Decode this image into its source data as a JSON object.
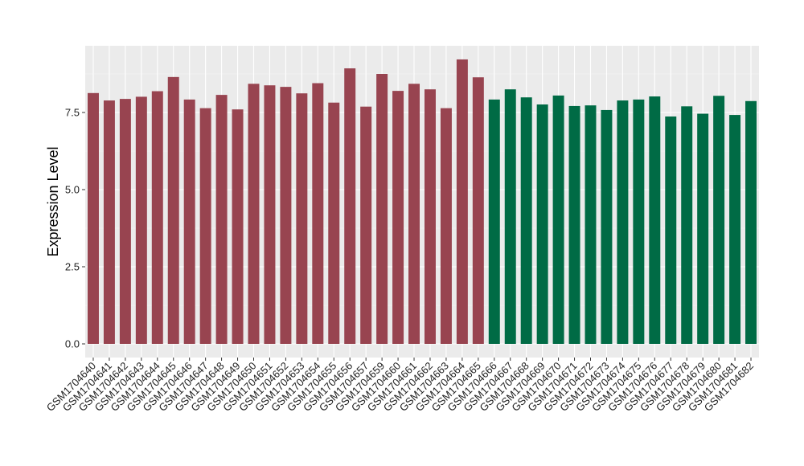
{
  "chart_data": {
    "type": "bar",
    "ylabel": "Expression Level",
    "xlabel": "",
    "ylim": [
      0,
      9.8
    ],
    "y_ticks": [
      0.0,
      2.5,
      5.0,
      7.5
    ],
    "y_tick_labels": [
      "0.0",
      "2.5",
      "5.0",
      "7.5"
    ],
    "grid": true,
    "background": "#EBEBEB",
    "categories": [
      "GSM1704640",
      "GSM1704641",
      "GSM1704642",
      "GSM1704643",
      "GSM1704644",
      "GSM1704645",
      "GSM1704646",
      "GSM1704647",
      "GSM1704648",
      "GSM1704649",
      "GSM1704650",
      "GSM1704651",
      "GSM1704652",
      "GSM1704653",
      "GSM1704654",
      "GSM1704655",
      "GSM1704656",
      "GSM1704657",
      "GSM1704659",
      "GSM1704660",
      "GSM1704661",
      "GSM1704662",
      "GSM1704663",
      "GSM1704664",
      "GSM1704665",
      "GSM1704666",
      "GSM1704667",
      "GSM1704668",
      "GSM1704669",
      "GSM1704670",
      "GSM1704671",
      "GSM1704672",
      "GSM1704673",
      "GSM1704674",
      "GSM1704675",
      "GSM1704676",
      "GSM1704677",
      "GSM1704678",
      "GSM1704679",
      "GSM1704680",
      "GSM1704681",
      "GSM1704682"
    ],
    "values": [
      8.13,
      7.89,
      7.94,
      8.01,
      8.19,
      8.65,
      7.92,
      7.64,
      8.07,
      7.6,
      8.43,
      8.38,
      8.33,
      8.12,
      8.45,
      7.82,
      8.93,
      7.69,
      8.75,
      8.2,
      8.43,
      8.25,
      7.64,
      9.22,
      8.64,
      7.92,
      8.25,
      7.99,
      7.76,
      8.05,
      7.71,
      7.73,
      7.58,
      7.89,
      7.92,
      8.02,
      7.37,
      7.7,
      7.46,
      8.04,
      7.42,
      7.87
    ],
    "groups": [
      0,
      0,
      0,
      0,
      0,
      0,
      0,
      0,
      0,
      0,
      0,
      0,
      0,
      0,
      0,
      0,
      0,
      0,
      0,
      0,
      0,
      0,
      0,
      0,
      0,
      1,
      1,
      1,
      1,
      1,
      1,
      1,
      1,
      1,
      1,
      1,
      1,
      1,
      1,
      1,
      1,
      1
    ],
    "group_colors": [
      "#984450",
      "#006B45"
    ]
  }
}
